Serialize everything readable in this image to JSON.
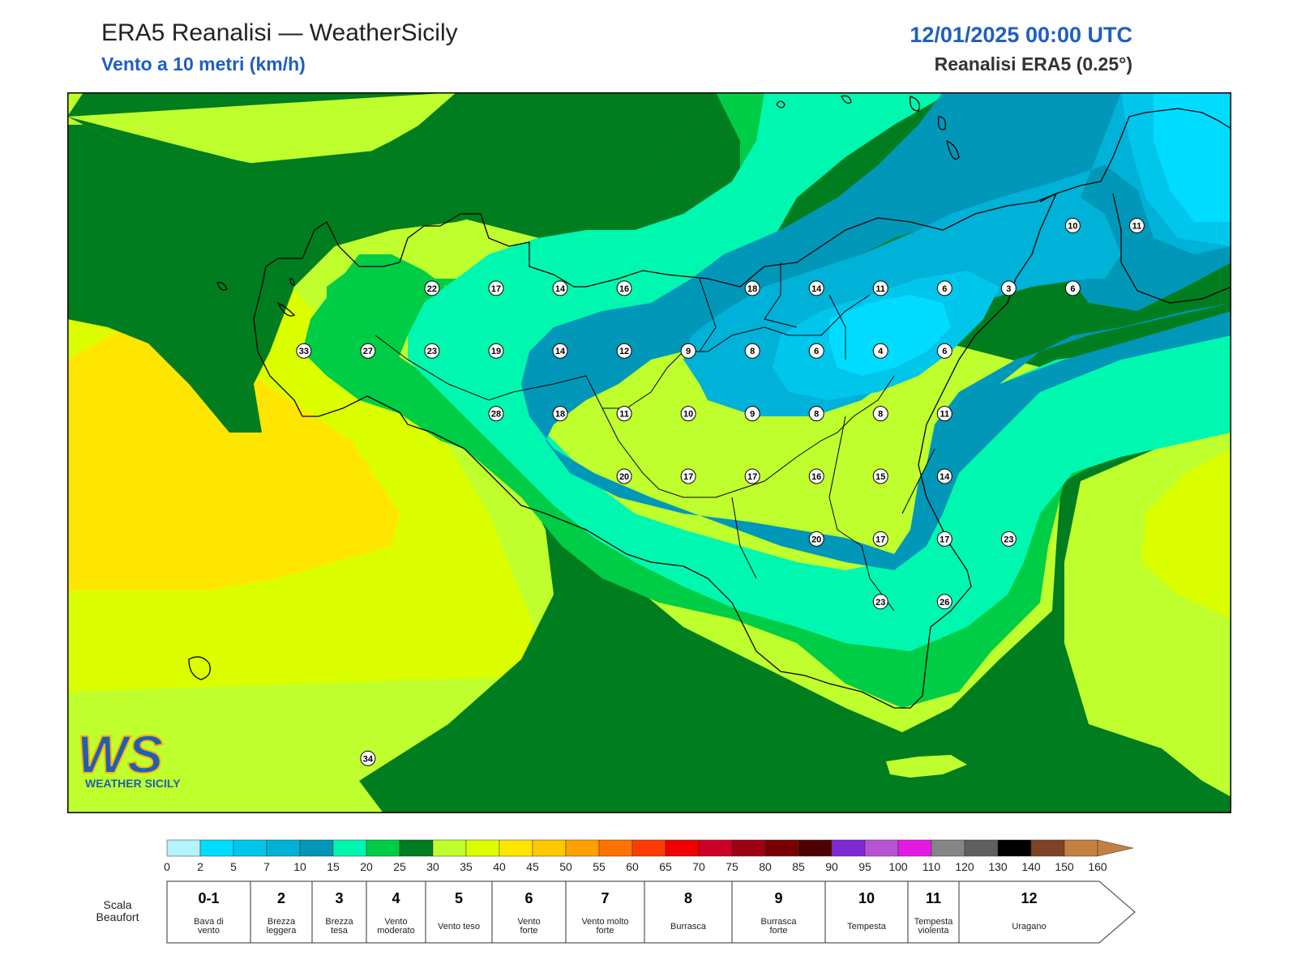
{
  "header": {
    "title": "ERA5 Reanalisi — WeatherSicily",
    "subtitle": "Vento a 10 metri (km/h)",
    "date": "12/01/2025 00:00 UTC",
    "source": "Reanalisi ERA5 (0.25°)"
  },
  "logo": {
    "letters": "WS",
    "text": "WEATHER SICILY"
  },
  "colors": {
    "c0": "#b5f3ff",
    "c2": "#00dcff",
    "c5": "#00c6ec",
    "c7": "#00b1d8",
    "c10": "#0097b8",
    "c15": "#00f7b0",
    "c20": "#00cd46",
    "c25": "#007d1e",
    "c30": "#bfff2d",
    "c35": "#dcff00",
    "c40": "#ffe600",
    "c45": "#ffc800"
  },
  "wind_labels": [
    {
      "lon": 12.7,
      "lat": 38.4,
      "v": "22"
    },
    {
      "lon": 13.0,
      "lat": 38.4,
      "v": "17"
    },
    {
      "lon": 13.3,
      "lat": 38.4,
      "v": "14"
    },
    {
      "lon": 13.6,
      "lat": 38.4,
      "v": "16"
    },
    {
      "lon": 14.2,
      "lat": 38.4,
      "v": "18"
    },
    {
      "lon": 14.5,
      "lat": 38.4,
      "v": "14"
    },
    {
      "lon": 14.8,
      "lat": 38.4,
      "v": "11"
    },
    {
      "lon": 15.1,
      "lat": 38.4,
      "v": "6"
    },
    {
      "lon": 15.4,
      "lat": 38.4,
      "v": "3"
    },
    {
      "lon": 15.7,
      "lat": 38.4,
      "v": "6"
    },
    {
      "lon": 15.7,
      "lat": 38.8,
      "v": "10"
    },
    {
      "lon": 16.0,
      "lat": 38.8,
      "v": "11"
    },
    {
      "lon": 12.1,
      "lat": 38.0,
      "v": "33"
    },
    {
      "lon": 12.4,
      "lat": 38.0,
      "v": "27"
    },
    {
      "lon": 12.7,
      "lat": 38.0,
      "v": "23"
    },
    {
      "lon": 13.0,
      "lat": 38.0,
      "v": "19"
    },
    {
      "lon": 13.3,
      "lat": 38.0,
      "v": "14"
    },
    {
      "lon": 13.6,
      "lat": 38.0,
      "v": "12"
    },
    {
      "lon": 13.9,
      "lat": 38.0,
      "v": "9"
    },
    {
      "lon": 14.2,
      "lat": 38.0,
      "v": "8"
    },
    {
      "lon": 14.5,
      "lat": 38.0,
      "v": "6"
    },
    {
      "lon": 14.8,
      "lat": 38.0,
      "v": "4"
    },
    {
      "lon": 15.1,
      "lat": 38.0,
      "v": "6"
    },
    {
      "lon": 13.0,
      "lat": 37.6,
      "v": "28"
    },
    {
      "lon": 13.3,
      "lat": 37.6,
      "v": "18"
    },
    {
      "lon": 13.6,
      "lat": 37.6,
      "v": "11"
    },
    {
      "lon": 13.9,
      "lat": 37.6,
      "v": "10"
    },
    {
      "lon": 14.2,
      "lat": 37.6,
      "v": "9"
    },
    {
      "lon": 14.5,
      "lat": 37.6,
      "v": "8"
    },
    {
      "lon": 14.8,
      "lat": 37.6,
      "v": "8"
    },
    {
      "lon": 15.1,
      "lat": 37.6,
      "v": "11"
    },
    {
      "lon": 13.6,
      "lat": 37.2,
      "v": "20"
    },
    {
      "lon": 13.9,
      "lat": 37.2,
      "v": "17"
    },
    {
      "lon": 14.2,
      "lat": 37.2,
      "v": "17"
    },
    {
      "lon": 14.5,
      "lat": 37.2,
      "v": "16"
    },
    {
      "lon": 14.8,
      "lat": 37.2,
      "v": "15"
    },
    {
      "lon": 15.1,
      "lat": 37.2,
      "v": "14"
    },
    {
      "lon": 14.5,
      "lat": 36.8,
      "v": "20"
    },
    {
      "lon": 14.8,
      "lat": 36.8,
      "v": "17"
    },
    {
      "lon": 15.1,
      "lat": 36.8,
      "v": "17"
    },
    {
      "lon": 15.4,
      "lat": 36.8,
      "v": "23"
    },
    {
      "lon": 14.8,
      "lat": 36.4,
      "v": "23"
    },
    {
      "lon": 15.1,
      "lat": 36.4,
      "v": "26"
    },
    {
      "lon": 12.4,
      "lat": 35.4,
      "v": "34"
    }
  ],
  "colorbar": {
    "ticks": [
      "0",
      "2",
      "5",
      "7",
      "10",
      "15",
      "20",
      "25",
      "30",
      "35",
      "40",
      "45",
      "50",
      "55",
      "60",
      "65",
      "70",
      "75",
      "80",
      "85",
      "90",
      "95",
      "100",
      "110",
      "120",
      "130",
      "140",
      "150",
      "160"
    ],
    "colors": [
      "#b5f3ff",
      "#00dcff",
      "#00c6ec",
      "#00b1d8",
      "#0097b8",
      "#00f7b0",
      "#00cd46",
      "#007d1e",
      "#bfff2d",
      "#dcff00",
      "#ffe600",
      "#ffc800",
      "#ffa000",
      "#ff7300",
      "#ff3c00",
      "#f00000",
      "#cd0026",
      "#a00014",
      "#7a0000",
      "#500000",
      "#7c2ad4",
      "#b752d6",
      "#e41ae4",
      "#858585",
      "#5f5f5f",
      "#000000",
      "#7f4323",
      "#c4803f"
    ]
  },
  "beaufort": {
    "title": "Scala\nBeaufort",
    "cells": [
      {
        "n": "0-1",
        "label": "Bava di\nvento",
        "from": 0,
        "to": 2
      },
      {
        "n": "2",
        "label": "Brezza\nleggera",
        "from": 2,
        "to": 7
      },
      {
        "n": "3",
        "label": "Brezza\ntesa",
        "from": 7,
        "to": 10
      },
      {
        "n": "4",
        "label": "Vento\nmoderato",
        "from": 10,
        "to": 15
      },
      {
        "n": "5",
        "label": "Vento teso",
        "from": 15,
        "to": 25
      },
      {
        "n": "6",
        "label": "Vento\nforte",
        "from": 25,
        "to": 35
      },
      {
        "n": "7",
        "label": "Vento molto\nforte",
        "from": 35,
        "to": 45
      },
      {
        "n": "8",
        "label": "Burrasca",
        "from": 45,
        "to": 55
      },
      {
        "n": "9",
        "label": "Burrasca\nforte",
        "from": 55,
        "to": 65
      },
      {
        "n": "10",
        "label": "Tempesta",
        "from": 65,
        "to": 75
      },
      {
        "n": "11",
        "label": "Tempesta\nviolenta",
        "from": 75,
        "to": 85
      },
      {
        "n": "12",
        "label": "Uragano",
        "from": 85,
        "to": 100
      }
    ]
  }
}
